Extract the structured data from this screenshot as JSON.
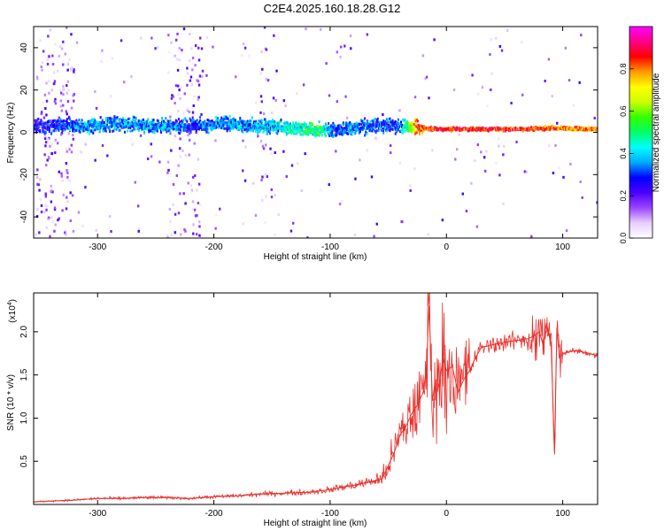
{
  "title": "C2E4.2025.160.18.28.G12",
  "chart_data": [
    {
      "type": "heatmap",
      "title": "",
      "xlabel": "Height of straight line (km)",
      "ylabel": "Frequency (Hz)",
      "xlim": [
        -355,
        130
      ],
      "ylim": [
        -50,
        50
      ],
      "xticks": [
        -300,
        -200,
        -100,
        0,
        100
      ],
      "xtick_labels": [
        "-300",
        "-200",
        "-100",
        "0",
        "100"
      ],
      "yticks": [
        -40,
        -20,
        0,
        20,
        40
      ],
      "ytick_labels": [
        "-40",
        "-20",
        "0",
        "20",
        "40"
      ],
      "ridge": {
        "x": [
          -340,
          -310,
          -280,
          -250,
          -220,
          -190,
          -160,
          -130,
          -110,
          -95,
          -80,
          -60,
          -40,
          -25,
          0,
          30,
          60,
          90,
          130
        ],
        "frequency": [
          3,
          3,
          4,
          3,
          3,
          4,
          3,
          2,
          1,
          1,
          2,
          3,
          3,
          2,
          1.5,
          1.5,
          1.5,
          2,
          1.5
        ],
        "amplitude": [
          0.25,
          0.35,
          0.35,
          0.35,
          0.3,
          0.35,
          0.35,
          0.45,
          0.5,
          0.3,
          0.35,
          0.3,
          0.3,
          0.8,
          0.85,
          0.85,
          0.85,
          0.8,
          0.8
        ]
      },
      "colorbar": {
        "label": "Normalized spectral amplitude",
        "range": [
          0,
          1
        ],
        "ticks": [
          0,
          0.2,
          0.4,
          0.6,
          0.8
        ],
        "tick_labels": [
          "0.0",
          "0.2",
          "0.4",
          "0.6",
          "0.8"
        ],
        "colors": [
          "#ffffff",
          "#e6cfff",
          "#9a46ff",
          "#4a00ff",
          "#0000ff",
          "#00aaff",
          "#00ffff",
          "#00ff66",
          "#33ff00",
          "#ccff00",
          "#ffff00",
          "#ff9900",
          "#ff0000",
          "#ff0088",
          "#ff00ff"
        ]
      }
    },
    {
      "type": "line",
      "title": "",
      "xlabel": "Height of straight line (km)",
      "ylabel": "SNR (10 * v/v)",
      "multiplier_label": "(x10",
      "multiplier_exponent": "4",
      "xlim": [
        -355,
        130
      ],
      "ylim": [
        0,
        2.45
      ],
      "xticks": [
        -300,
        -200,
        -100,
        0,
        100
      ],
      "xtick_labels": [
        "-300",
        "-200",
        "-100",
        "0",
        "100"
      ],
      "yticks": [
        0.5,
        1.0,
        1.5,
        2.0
      ],
      "ytick_labels": [
        "0.5",
        "1.0",
        "1.5",
        "2.0"
      ],
      "series": [
        {
          "color": "#e8302c",
          "x": [
            -355,
            -340,
            -320,
            -300,
            -280,
            -260,
            -240,
            -220,
            -200,
            -180,
            -160,
            -140,
            -120,
            -100,
            -90,
            -80,
            -70,
            -60,
            -55,
            -50,
            -45,
            -40,
            -35,
            -30,
            -25,
            -20,
            -17,
            -15,
            -12,
            -10,
            -8,
            -5,
            -3,
            0,
            5,
            10,
            15,
            20,
            25,
            30,
            40,
            50,
            60,
            70,
            75,
            80,
            83,
            86,
            90,
            93,
            95,
            97,
            100,
            110,
            120,
            130
          ],
          "y": [
            0.03,
            0.04,
            0.05,
            0.07,
            0.07,
            0.08,
            0.08,
            0.07,
            0.09,
            0.1,
            0.12,
            0.13,
            0.14,
            0.17,
            0.2,
            0.22,
            0.25,
            0.28,
            0.3,
            0.45,
            0.6,
            0.8,
            0.9,
            1.05,
            1.15,
            1.3,
            1.6,
            2.3,
            1.2,
            1.4,
            1.3,
            1.5,
            1.7,
            1.55,
            1.6,
            1.3,
            1.45,
            1.55,
            1.7,
            1.82,
            1.85,
            1.88,
            1.9,
            1.92,
            1.95,
            2.0,
            1.85,
            2.1,
            1.85,
            0.6,
            2.05,
            1.7,
            1.75,
            1.78,
            1.76,
            1.72
          ]
        }
      ]
    }
  ]
}
